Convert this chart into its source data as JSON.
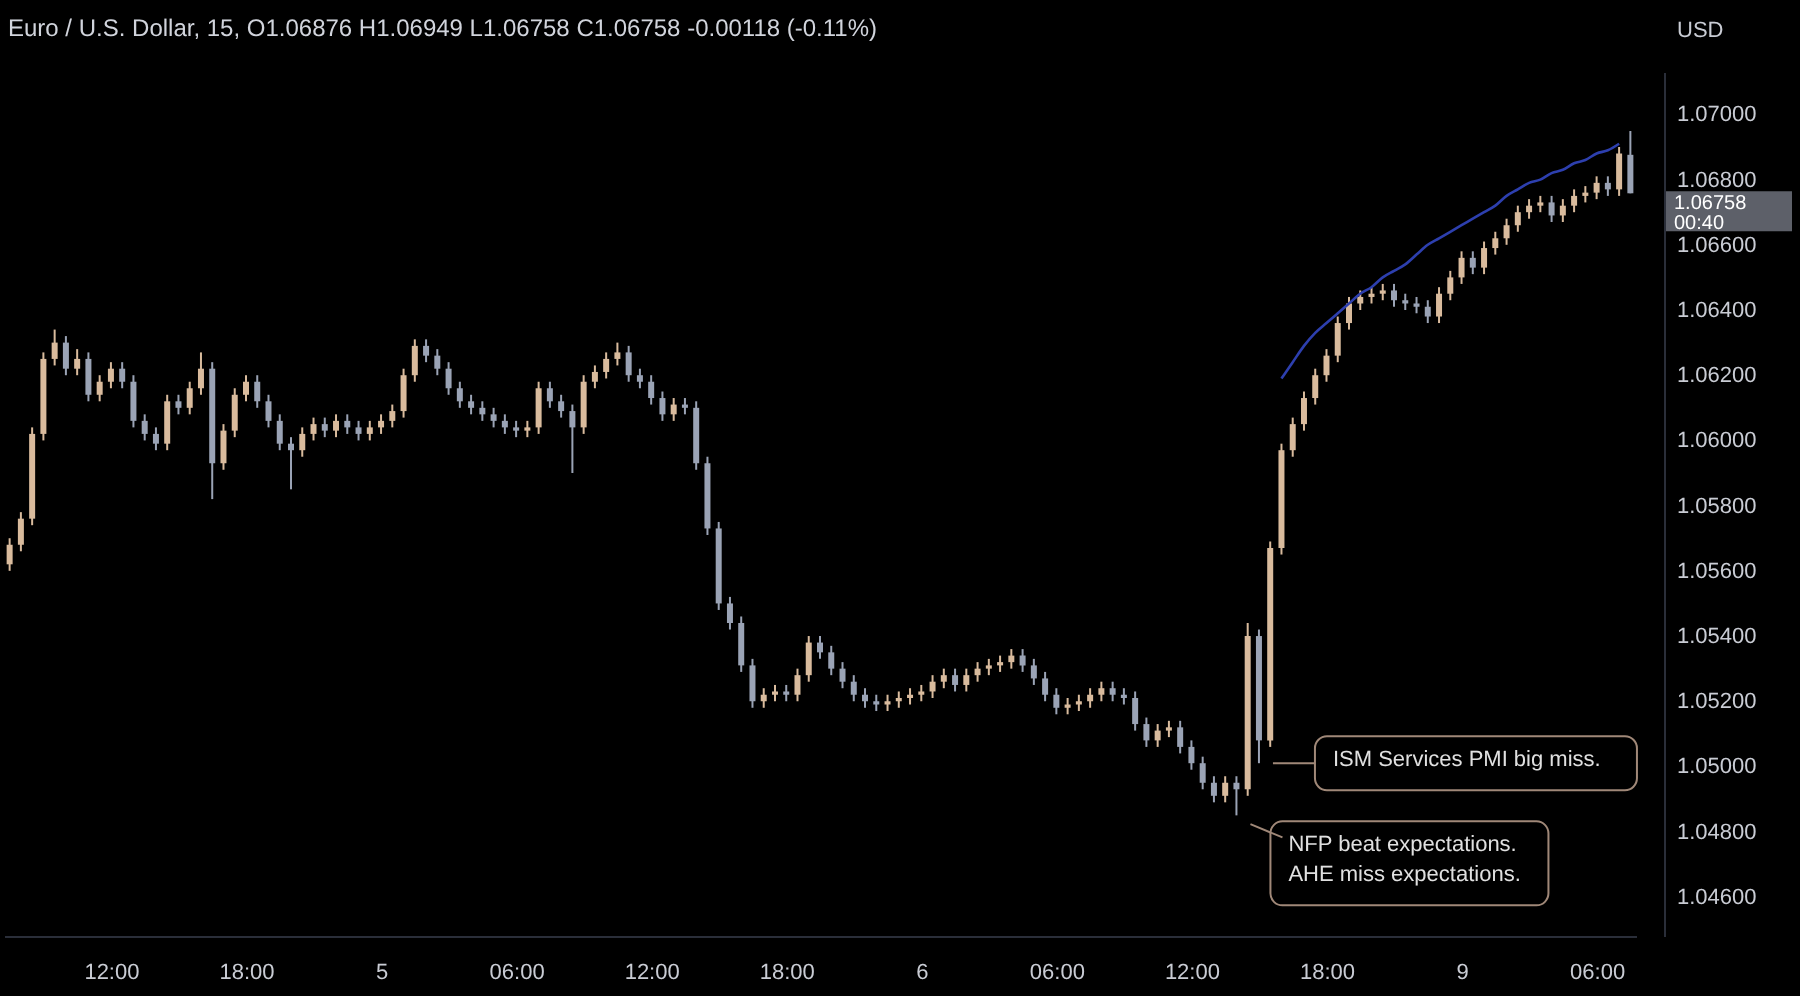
{
  "chart_data": {
    "type": "candlestick",
    "title": "Euro / U.S. Dollar, 15, O1.06876 H1.06949 L1.06758 C1.06758 -0.00118 (-0.11%)",
    "ylabel": "USD",
    "categories": [
      null,
      null,
      null,
      null,
      null,
      null,
      null,
      null,
      null,
      "12:00",
      null,
      null,
      null,
      null,
      null,
      null,
      null,
      null,
      null,
      null,
      null,
      "18:00",
      null,
      null,
      null,
      null,
      null,
      null,
      null,
      null,
      null,
      null,
      null,
      "5",
      null,
      null,
      null,
      null,
      null,
      null,
      null,
      null,
      null,
      null,
      null,
      "06:00",
      null,
      null,
      null,
      null,
      null,
      null,
      null,
      null,
      null,
      null,
      null,
      "12:00",
      null,
      null,
      null,
      null,
      null,
      null,
      null,
      null,
      null,
      null,
      null,
      "18:00",
      null,
      null,
      null,
      null,
      null,
      null,
      null,
      null,
      null,
      null,
      null,
      "6",
      null,
      null,
      null,
      null,
      null,
      null,
      null,
      null,
      null,
      null,
      null,
      "06:00",
      null,
      null,
      null,
      null,
      null,
      null,
      null,
      null,
      null,
      null,
      null,
      "12:00",
      null,
      null,
      null,
      null,
      null,
      null,
      null,
      null,
      null,
      null,
      null,
      "18:00",
      null,
      null,
      null,
      null,
      null,
      null,
      null,
      null,
      null,
      null,
      null,
      "9",
      null,
      null,
      null,
      null,
      null,
      null,
      null,
      null,
      null,
      null,
      null,
      "06:00",
      null,
      null,
      null
    ],
    "ylim": [
      1.0448,
      1.0713
    ],
    "yticks": [
      {
        "value": 1.046,
        "label": "1.04600"
      },
      {
        "value": 1.048,
        "label": "1.04800"
      },
      {
        "value": 1.05,
        "label": "1.05000"
      },
      {
        "value": 1.052,
        "label": "1.05200"
      },
      {
        "value": 1.054,
        "label": "1.05400"
      },
      {
        "value": 1.056,
        "label": "1.05600"
      },
      {
        "value": 1.058,
        "label": "1.05800"
      },
      {
        "value": 1.06,
        "label": "1.06000"
      },
      {
        "value": 1.062,
        "label": "1.06200"
      },
      {
        "value": 1.064,
        "label": "1.06400"
      },
      {
        "value": 1.066,
        "label": "1.06600"
      },
      {
        "value": 1.068,
        "label": "1.06800"
      },
      {
        "value": 1.07,
        "label": "1.07000"
      }
    ],
    "colors": [
      "#d9bb9d",
      "#d9bb9d",
      "#d9bb9d",
      "#d9bb9d",
      "#d9bb9d",
      "#9aa3b5",
      "#d9bb9d",
      "#9aa3b5",
      "#d9bb9d",
      "#d9bb9d",
      "#9aa3b5",
      "#9aa3b5",
      "#9aa3b5",
      "#9aa3b5",
      "#d9bb9d",
      "#9aa3b5",
      "#d9bb9d",
      "#d9bb9d",
      "#9aa3b5",
      "#d9bb9d",
      "#d9bb9d",
      "#d9bb9d",
      "#9aa3b5",
      "#9aa3b5",
      "#9aa3b5",
      "#9aa3b5",
      "#d9bb9d",
      "#d9bb9d",
      "#9aa3b5",
      "#d9bb9d",
      "#9aa3b5",
      "#9aa3b5",
      "#d9bb9d",
      "#d9bb9d",
      "#d9bb9d",
      "#d9bb9d",
      "#d9bb9d",
      "#9aa3b5",
      "#9aa3b5",
      "#9aa3b5",
      "#9aa3b5",
      "#9aa3b5",
      "#9aa3b5",
      "#9aa3b5",
      "#9aa3b5",
      "#9aa3b5",
      "#d9bb9d",
      "#d9bb9d",
      "#9aa3b5",
      "#9aa3b5",
      "#9aa3b5",
      "#d9bb9d",
      "#d9bb9d",
      "#d9bb9d",
      "#d9bb9d",
      "#9aa3b5",
      "#9aa3b5",
      "#9aa3b5",
      "#9aa3b5",
      "#d9bb9d",
      "#9aa3b5",
      "#9aa3b5",
      "#9aa3b5",
      "#9aa3b5",
      "#9aa3b5",
      "#9aa3b5",
      "#9aa3b5",
      "#d9bb9d",
      "#d9bb9d",
      "#9aa3b5",
      "#d9bb9d",
      "#d9bb9d",
      "#9aa3b5",
      "#9aa3b5",
      "#9aa3b5",
      "#9aa3b5",
      "#9aa3b5",
      "#9aa3b5",
      "#d9bb9d",
      "#d9bb9d",
      "#d9bb9d",
      "#d9bb9d",
      "#d9bb9d",
      "#d9bb9d",
      "#9aa3b5",
      "#d9bb9d",
      "#d9bb9d",
      "#d9bb9d",
      "#d9bb9d",
      "#d9bb9d",
      "#9aa3b5",
      "#9aa3b5",
      "#9aa3b5",
      "#9aa3b5",
      "#d9bb9d",
      "#d9bb9d",
      "#d9bb9d",
      "#d9bb9d",
      "#9aa3b5",
      "#9aa3b5",
      "#9aa3b5",
      "#9aa3b5",
      "#d9bb9d",
      "#d9bb9d",
      "#9aa3b5",
      "#9aa3b5",
      "#9aa3b5",
      "#9aa3b5",
      "#d9bb9d",
      "#9aa3b5",
      "#d9bb9d",
      "#9aa3b5",
      "#d9bb9d",
      "#d9bb9d",
      "#d9bb9d",
      "#d9bb9d",
      "#d9bb9d",
      "#d9bb9d",
      "#d9bb9d",
      "#d9bb9d",
      "#d9bb9d",
      "#d9bb9d",
      "#d9bb9d",
      "#9aa3b5",
      "#9aa3b5",
      "#9aa3b5",
      "#9aa3b5",
      "#d9bb9d",
      "#d9bb9d",
      "#d9bb9d",
      "#9aa3b5",
      "#d9bb9d",
      "#d9bb9d",
      "#d9bb9d",
      "#d9bb9d",
      "#d9bb9d",
      "#d9bb9d",
      "#9aa3b5",
      "#d9bb9d",
      "#d9bb9d",
      "#d9bb9d",
      "#d9bb9d",
      "#9aa3b5",
      "#d9bb9d",
      "#9aa3b5"
    ],
    "ohlc": [
      [
        1.0562,
        1.057,
        1.056,
        1.0568
      ],
      [
        1.0568,
        1.0578,
        1.0566,
        1.0576
      ],
      [
        1.0576,
        1.0604,
        1.0574,
        1.0602
      ],
      [
        1.0602,
        1.0627,
        1.06,
        1.0625
      ],
      [
        1.0625,
        1.0634,
        1.0623,
        1.063
      ],
      [
        1.063,
        1.0632,
        1.062,
        1.0622
      ],
      [
        1.0622,
        1.0628,
        1.062,
        1.0625
      ],
      [
        1.0625,
        1.0627,
        1.0612,
        1.0614
      ],
      [
        1.0614,
        1.062,
        1.0612,
        1.0618
      ],
      [
        1.0618,
        1.0624,
        1.0616,
        1.0622
      ],
      [
        1.0622,
        1.0624,
        1.0616,
        1.0618
      ],
      [
        1.0618,
        1.062,
        1.0604,
        1.0606
      ],
      [
        1.0606,
        1.0608,
        1.06,
        1.0602
      ],
      [
        1.0602,
        1.0604,
        1.0597,
        1.0599
      ],
      [
        1.0599,
        1.0614,
        1.0597,
        1.0612
      ],
      [
        1.0612,
        1.0614,
        1.0608,
        1.061
      ],
      [
        1.061,
        1.0618,
        1.0608,
        1.0616
      ],
      [
        1.0616,
        1.0627,
        1.0614,
        1.0622
      ],
      [
        1.0622,
        1.0624,
        1.0582,
        1.0593
      ],
      [
        1.0593,
        1.0605,
        1.0591,
        1.0603
      ],
      [
        1.0603,
        1.0616,
        1.0601,
        1.0614
      ],
      [
        1.0614,
        1.062,
        1.0612,
        1.0618
      ],
      [
        1.0618,
        1.062,
        1.061,
        1.0612
      ],
      [
        1.0612,
        1.0614,
        1.0604,
        1.0606
      ],
      [
        1.0606,
        1.0608,
        1.0597,
        1.0599
      ],
      [
        1.0599,
        1.0601,
        1.0585,
        1.0597
      ],
      [
        1.0597,
        1.0604,
        1.0595,
        1.0602
      ],
      [
        1.0602,
        1.0607,
        1.06,
        1.0605
      ],
      [
        1.0605,
        1.0607,
        1.0601,
        1.0603
      ],
      [
        1.0603,
        1.0608,
        1.0601,
        1.0606
      ],
      [
        1.0606,
        1.0608,
        1.0602,
        1.0604
      ],
      [
        1.0604,
        1.0606,
        1.06,
        1.0602
      ],
      [
        1.0602,
        1.0606,
        1.06,
        1.0604
      ],
      [
        1.0604,
        1.0608,
        1.0602,
        1.0606
      ],
      [
        1.0606,
        1.0611,
        1.0604,
        1.0609
      ],
      [
        1.0609,
        1.0622,
        1.0607,
        1.062
      ],
      [
        1.062,
        1.0631,
        1.0618,
        1.0629
      ],
      [
        1.0629,
        1.0631,
        1.0624,
        1.0626
      ],
      [
        1.0626,
        1.0628,
        1.062,
        1.0622
      ],
      [
        1.0622,
        1.0624,
        1.0614,
        1.0616
      ],
      [
        1.0616,
        1.0618,
        1.061,
        1.0612
      ],
      [
        1.0612,
        1.0614,
        1.0608,
        1.061
      ],
      [
        1.061,
        1.0612,
        1.0606,
        1.0608
      ],
      [
        1.0608,
        1.061,
        1.0604,
        1.0606
      ],
      [
        1.0606,
        1.0608,
        1.0602,
        1.0604
      ],
      [
        1.0604,
        1.0606,
        1.0601,
        1.0603
      ],
      [
        1.0603,
        1.0606,
        1.0601,
        1.0604
      ],
      [
        1.0604,
        1.0618,
        1.0602,
        1.0616
      ],
      [
        1.0616,
        1.0618,
        1.061,
        1.0612
      ],
      [
        1.0612,
        1.0614,
        1.0607,
        1.0609
      ],
      [
        1.0609,
        1.0611,
        1.059,
        1.0604
      ],
      [
        1.0604,
        1.062,
        1.0602,
        1.0618
      ],
      [
        1.0618,
        1.0623,
        1.0616,
        1.0621
      ],
      [
        1.0621,
        1.0627,
        1.0619,
        1.0625
      ],
      [
        1.0625,
        1.063,
        1.0623,
        1.0627
      ],
      [
        1.0627,
        1.0629,
        1.0618,
        1.062
      ],
      [
        1.062,
        1.0622,
        1.0616,
        1.0618
      ],
      [
        1.0618,
        1.062,
        1.0611,
        1.0613
      ],
      [
        1.0613,
        1.0615,
        1.0606,
        1.0608
      ],
      [
        1.0608,
        1.0613,
        1.0606,
        1.0611
      ],
      [
        1.0611,
        1.0613,
        1.0608,
        1.061
      ],
      [
        1.061,
        1.0612,
        1.0591,
        1.0593
      ],
      [
        1.0593,
        1.0595,
        1.0571,
        1.0573
      ],
      [
        1.0573,
        1.0575,
        1.0548,
        1.055
      ],
      [
        1.055,
        1.0552,
        1.0542,
        1.0544
      ],
      [
        1.0544,
        1.0546,
        1.0529,
        1.0531
      ],
      [
        1.0531,
        1.0533,
        1.0518,
        1.052
      ],
      [
        1.052,
        1.0524,
        1.0518,
        1.0522
      ],
      [
        1.0522,
        1.0525,
        1.052,
        1.0523
      ],
      [
        1.0523,
        1.0525,
        1.052,
        1.0522
      ],
      [
        1.0522,
        1.053,
        1.052,
        1.0528
      ],
      [
        1.0528,
        1.054,
        1.0526,
        1.0538
      ],
      [
        1.0538,
        1.054,
        1.0533,
        1.0535
      ],
      [
        1.0535,
        1.0537,
        1.0528,
        1.053
      ],
      [
        1.053,
        1.0532,
        1.0524,
        1.0526
      ],
      [
        1.0526,
        1.0528,
        1.052,
        1.0522
      ],
      [
        1.0522,
        1.0524,
        1.0518,
        1.052
      ],
      [
        1.052,
        1.0522,
        1.0517,
        1.0519
      ],
      [
        1.0519,
        1.0522,
        1.0517,
        1.052
      ],
      [
        1.052,
        1.0523,
        1.0518,
        1.0521
      ],
      [
        1.0521,
        1.0524,
        1.0519,
        1.0522
      ],
      [
        1.0522,
        1.0525,
        1.052,
        1.0523
      ],
      [
        1.0523,
        1.0528,
        1.0521,
        1.0526
      ],
      [
        1.0526,
        1.053,
        1.0524,
        1.0528
      ],
      [
        1.0528,
        1.053,
        1.0523,
        1.0525
      ],
      [
        1.0525,
        1.053,
        1.0523,
        1.0528
      ],
      [
        1.0528,
        1.0532,
        1.0526,
        1.053
      ],
      [
        1.053,
        1.0533,
        1.0528,
        1.0531
      ],
      [
        1.0531,
        1.0534,
        1.0529,
        1.0532
      ],
      [
        1.0532,
        1.0536,
        1.053,
        1.0534
      ],
      [
        1.0534,
        1.0536,
        1.0529,
        1.0531
      ],
      [
        1.0531,
        1.0533,
        1.0525,
        1.0527
      ],
      [
        1.0527,
        1.0529,
        1.052,
        1.0522
      ],
      [
        1.0522,
        1.0524,
        1.0516,
        1.0518
      ],
      [
        1.0518,
        1.0521,
        1.0516,
        1.0519
      ],
      [
        1.0519,
        1.0522,
        1.0517,
        1.052
      ],
      [
        1.052,
        1.0524,
        1.0518,
        1.0522
      ],
      [
        1.0522,
        1.0526,
        1.052,
        1.0524
      ],
      [
        1.0524,
        1.0526,
        1.052,
        1.0522
      ],
      [
        1.0522,
        1.0524,
        1.0519,
        1.0521
      ],
      [
        1.0521,
        1.0523,
        1.0511,
        1.0513
      ],
      [
        1.0513,
        1.0515,
        1.0506,
        1.0508
      ],
      [
        1.0508,
        1.0513,
        1.0506,
        1.0511
      ],
      [
        1.0511,
        1.0514,
        1.0509,
        1.0512
      ],
      [
        1.0512,
        1.0514,
        1.0504,
        1.0506
      ],
      [
        1.0506,
        1.0508,
        1.0499,
        1.0501
      ],
      [
        1.0501,
        1.0503,
        1.0493,
        1.0495
      ],
      [
        1.0495,
        1.0497,
        1.0489,
        1.0491
      ],
      [
        1.0491,
        1.0497,
        1.0489,
        1.0495
      ],
      [
        1.0495,
        1.0497,
        1.0485,
        1.0493
      ],
      [
        1.0493,
        1.0544,
        1.0491,
        1.054
      ],
      [
        1.054,
        1.0542,
        1.0501,
        1.0508
      ],
      [
        1.0508,
        1.0569,
        1.0506,
        1.0567
      ],
      [
        1.0567,
        1.0599,
        1.0565,
        1.0597
      ],
      [
        1.0597,
        1.0607,
        1.0595,
        1.0605
      ],
      [
        1.0605,
        1.0615,
        1.0603,
        1.0613
      ],
      [
        1.0613,
        1.0622,
        1.0611,
        1.062
      ],
      [
        1.062,
        1.0628,
        1.0618,
        1.0626
      ],
      [
        1.0626,
        1.0638,
        1.0624,
        1.0636
      ],
      [
        1.0636,
        1.0644,
        1.0634,
        1.0642
      ],
      [
        1.0642,
        1.0646,
        1.064,
        1.0644
      ],
      [
        1.0644,
        1.0647,
        1.0642,
        1.0645
      ],
      [
        1.0645,
        1.0648,
        1.0643,
        1.0646
      ],
      [
        1.0646,
        1.0648,
        1.0641,
        1.0643
      ],
      [
        1.0643,
        1.0645,
        1.064,
        1.0642
      ],
      [
        1.0642,
        1.0644,
        1.0639,
        1.0641
      ],
      [
        1.0641,
        1.0643,
        1.0636,
        1.0638
      ],
      [
        1.0638,
        1.0647,
        1.0636,
        1.0645
      ],
      [
        1.0645,
        1.0652,
        1.0643,
        1.065
      ],
      [
        1.065,
        1.0658,
        1.0648,
        1.0656
      ],
      [
        1.0656,
        1.0658,
        1.0651,
        1.0653
      ],
      [
        1.0653,
        1.0661,
        1.0651,
        1.0659
      ],
      [
        1.0659,
        1.0664,
        1.0657,
        1.0662
      ],
      [
        1.0662,
        1.0668,
        1.066,
        1.0666
      ],
      [
        1.0666,
        1.0672,
        1.0664,
        1.067
      ],
      [
        1.067,
        1.0674,
        1.0668,
        1.0672
      ],
      [
        1.0672,
        1.0675,
        1.067,
        1.0673
      ],
      [
        1.0673,
        1.0675,
        1.0667,
        1.0669
      ],
      [
        1.0669,
        1.0674,
        1.0667,
        1.0672
      ],
      [
        1.0672,
        1.0677,
        1.067,
        1.0675
      ],
      [
        1.0675,
        1.0678,
        1.0673,
        1.0676
      ],
      [
        1.0676,
        1.0681,
        1.0674,
        1.0679
      ],
      [
        1.0679,
        1.0681,
        1.0675,
        1.0677
      ],
      [
        1.0677,
        1.069,
        1.0675,
        1.0688
      ],
      [
        1.06876,
        1.06949,
        1.06758,
        1.06758
      ]
    ],
    "series": [
      {
        "type": "line",
        "color": "#2d3fae",
        "values": [
          null,
          null,
          null,
          null,
          null,
          null,
          null,
          null,
          null,
          null,
          null,
          null,
          null,
          null,
          null,
          null,
          null,
          null,
          null,
          null,
          null,
          null,
          null,
          null,
          null,
          null,
          null,
          null,
          null,
          null,
          null,
          null,
          null,
          null,
          null,
          null,
          null,
          null,
          null,
          null,
          null,
          null,
          null,
          null,
          null,
          null,
          null,
          null,
          null,
          null,
          null,
          null,
          null,
          null,
          null,
          null,
          null,
          null,
          null,
          null,
          null,
          null,
          null,
          null,
          null,
          null,
          null,
          null,
          null,
          null,
          null,
          null,
          null,
          null,
          null,
          null,
          null,
          null,
          null,
          null,
          null,
          null,
          null,
          null,
          null,
          null,
          null,
          null,
          null,
          null,
          null,
          null,
          null,
          null,
          null,
          null,
          null,
          null,
          null,
          null,
          null,
          null,
          null,
          null,
          null,
          null,
          null,
          null,
          null,
          null,
          null,
          null,
          null,
          1.0619,
          1.0624,
          1.0629,
          1.0633,
          1.0636,
          1.0639,
          1.0642,
          1.0645,
          1.0647,
          1.065,
          1.0652,
          1.0654,
          1.0657,
          1.066,
          1.0662,
          1.0664,
          1.0666,
          1.0668,
          1.067,
          1.0672,
          1.0675,
          1.0677,
          1.0679,
          1.068,
          1.0682,
          1.0683,
          1.0685,
          1.0686,
          1.0688,
          1.0689,
          1.0691,
          null
        ]
      }
    ],
    "annotations": [
      "ISM Services PMI big miss.",
      "NFP beat expectations.\nAHE miss expectations.",
      "1.06758\n00:40"
    ]
  }
}
